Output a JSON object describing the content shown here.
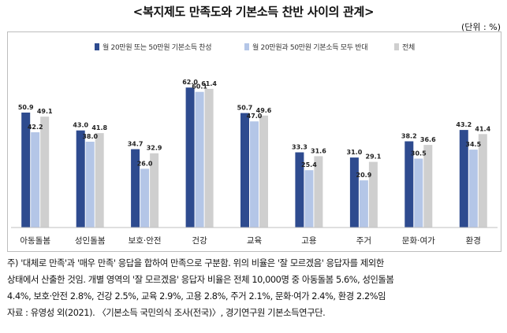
{
  "header": {
    "title": "<복지제도 만족도와 기본소득 찬반 사이의 관계>",
    "unit": "(단위 : %)"
  },
  "colors": {
    "support": "#2e4b8f",
    "oppose": "#b4c6e7",
    "total": "#cfcfcf"
  },
  "chart_data": {
    "type": "bar",
    "categories": [
      "아동돌봄",
      "성인돌봄",
      "보호·안전",
      "건강",
      "교육",
      "고용",
      "주거",
      "문화·여가",
      "환경"
    ],
    "series": [
      {
        "name": "월 20만원 또는 50만원 기본소득 찬성",
        "values": [
          50.9,
          43.0,
          34.7,
          62.0,
          50.7,
          33.3,
          31.0,
          38.2,
          43.2
        ]
      },
      {
        "name": "월 20만원과 50만원 기본소득 모두 반대",
        "values": [
          42.2,
          38.0,
          26.0,
          60.1,
          47.0,
          25.4,
          20.9,
          30.5,
          34.5
        ]
      },
      {
        "name": "전체",
        "values": [
          49.1,
          41.8,
          32.9,
          61.4,
          49.6,
          31.6,
          29.1,
          36.6,
          41.4
        ]
      }
    ],
    "data_labels": [
      [
        "50.9",
        "43.0",
        "34.7",
        "62.0",
        "50.7",
        "33.3",
        "31.0",
        "38.2",
        "43.2"
      ],
      [
        "42.2",
        "38.0",
        "26.0",
        "60.1",
        "47.0",
        "25.4",
        "20.9",
        "30.5",
        "34.5"
      ],
      [
        "49.1",
        "41.8",
        "32.9",
        "61.4",
        "49.6",
        "31.6",
        "29.1",
        "36.6",
        "41.4"
      ]
    ],
    "ylim": [
      0,
      70
    ],
    "grid": false,
    "legend_position": "top"
  },
  "notes": {
    "line1": "주) '대체로 만족'과 '매우 만족' 응답을 합하여 만족으로 구분함. 위의 비율은 '잘 모르겠음' 응답자를 제외한",
    "line2": "상태에서 산출한 것임. 개별 영역의 '잘 모르겠음' 응답자 비율은 전체 10,000명 중 아동돌봄 5.6%, 성인돌봄",
    "line3": "4.4%, 보호·안전 2.8%, 건강 2.5%, 교육 2.9%, 고용 2.8%, 주거 2.1%, 문화·여가 2.4%, 환경 2.2%임",
    "source": "자료 : 유영성 외(2021). 〈기본소득 국민의식 조사(전국)〉, 경기연구원 기본소득연구단."
  }
}
